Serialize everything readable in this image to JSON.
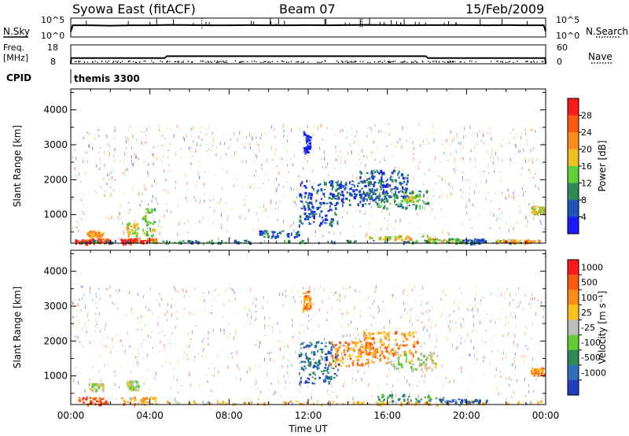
{
  "header": {
    "station": "Syowa East (fitACF)",
    "beam": "Beam 07",
    "date": "15/Feb/2009"
  },
  "chart_data": [
    {
      "type": "line",
      "panel": "noise",
      "left_label": "N.Sky",
      "right_label": "N.Search",
      "left_ticks": [
        "10^5",
        "10^0"
      ],
      "right_ticks": [
        "10^5",
        "10^0"
      ],
      "x_range_hours": [
        0,
        24
      ],
      "series": [
        {
          "name": "N.Sky",
          "style": "solid",
          "x": [
            0,
            0.1,
            1,
            2,
            3,
            4,
            5,
            6,
            7,
            8,
            9,
            10,
            11,
            12,
            13,
            14,
            15,
            16,
            17,
            18,
            19,
            20,
            21,
            22,
            23,
            23.9,
            24
          ],
          "level_fraction": [
            0.28,
            0.62,
            0.62,
            0.6,
            0.62,
            0.62,
            0.64,
            0.63,
            0.62,
            0.62,
            0.63,
            0.62,
            0.62,
            0.63,
            0.62,
            0.63,
            0.64,
            0.63,
            0.62,
            0.63,
            0.63,
            0.63,
            0.62,
            0.63,
            0.62,
            0.62,
            0.3
          ]
        }
      ]
    },
    {
      "type": "line",
      "panel": "frequency",
      "left_label_top": "Freq.",
      "left_label_unit": "[MHz]",
      "left_ticks": [
        "18",
        "8"
      ],
      "right_label": "Nave",
      "right_ticks": [
        "60",
        "0"
      ],
      "x_range_hours": [
        0,
        24
      ],
      "series": [
        {
          "name": "Freq.",
          "style": "solid",
          "x": [
            0,
            0.02,
            4.75,
            4.85,
            17.95,
            18.05,
            23.98,
            24
          ],
          "y": [
            8,
            11,
            11,
            12,
            12,
            11,
            11,
            8
          ]
        },
        {
          "name": "Nave",
          "style": "dotted",
          "y_value": 11
        }
      ]
    },
    {
      "type": "table",
      "panel": "cpid",
      "label": "CPID",
      "value": "themis 3300"
    },
    {
      "type": "heatmap",
      "panel": "power",
      "ylabel": "Slant Range [km]",
      "yticks": [
        1000,
        2000,
        3000,
        4000
      ],
      "ylim": [
        180,
        4600
      ],
      "xlabel": "",
      "xticks": [
        "00:00",
        "04:00",
        "08:00",
        "12:00",
        "16:00",
        "20:00",
        "00:00"
      ],
      "xlim_hours": [
        0,
        24
      ],
      "colorbar": {
        "label": "Power [dB]",
        "ticks": [
          "4",
          "8",
          "12",
          "16",
          "20",
          "24",
          "28"
        ],
        "colors": [
          "#1a1aff",
          "#1f56b5",
          "#2e8b57",
          "#5fd13d",
          "#f0c020",
          "#ff8c1a",
          "#ff5a14",
          "#ff1a1a"
        ]
      },
      "blobs": [
        {
          "t": [
            0.2,
            1.2
          ],
          "r": [
            200,
            320
          ],
          "level": 7
        },
        {
          "t": [
            1.2,
            2.0
          ],
          "r": [
            200,
            330
          ],
          "level": 6
        },
        {
          "t": [
            2.5,
            3.3
          ],
          "r": [
            200,
            330
          ],
          "level": 7
        },
        {
          "t": [
            3.3,
            4.3
          ],
          "r": [
            200,
            330
          ],
          "level": 6
        },
        {
          "t": [
            0.8,
            1.6
          ],
          "r": [
            380,
            560
          ],
          "level": 5
        },
        {
          "t": [
            2.8,
            3.4
          ],
          "r": [
            420,
            780
          ],
          "level": 4
        },
        {
          "t": [
            3.6,
            4.2
          ],
          "r": [
            400,
            1200
          ],
          "level": 3
        },
        {
          "t": [
            0.3,
            23.8
          ],
          "r": [
            200,
            280
          ],
          "level": 2
        },
        {
          "t": [
            9.5,
            11.5
          ],
          "r": [
            380,
            560
          ],
          "level": 1
        },
        {
          "t": [
            11.5,
            13.5
          ],
          "r": [
            700,
            2000
          ],
          "level": 1
        },
        {
          "t": [
            13.0,
            16.0
          ],
          "r": [
            1300,
            2000
          ],
          "level": 1
        },
        {
          "t": [
            14.5,
            17.0
          ],
          "r": [
            1500,
            2300
          ],
          "level": 1
        },
        {
          "t": [
            15.5,
            18.0
          ],
          "r": [
            1200,
            1700
          ],
          "level": 2
        },
        {
          "t": [
            16.8,
            17.6
          ],
          "r": [
            1400,
            1600
          ],
          "level": 3
        },
        {
          "t": [
            15.0,
            18.5
          ],
          "r": [
            300,
            420
          ],
          "level": 4
        },
        {
          "t": [
            18.0,
            19.8
          ],
          "r": [
            220,
            330
          ],
          "level": 3
        },
        {
          "t": [
            19.8,
            21.0
          ],
          "r": [
            200,
            320
          ],
          "level": 1
        },
        {
          "t": [
            21.5,
            23.8
          ],
          "r": [
            200,
            300
          ],
          "level": 5
        },
        {
          "t": [
            23.2,
            23.9
          ],
          "r": [
            1050,
            1250
          ],
          "level": 4
        },
        {
          "t": [
            11.7,
            12.1
          ],
          "r": [
            2800,
            3400
          ],
          "level": 0
        }
      ]
    },
    {
      "type": "heatmap",
      "panel": "velocity",
      "ylabel": "Slant Range [km]",
      "yticks": [
        1000,
        2000,
        3000,
        4000
      ],
      "ylim": [
        180,
        4600
      ],
      "xlabel": "Time UT",
      "xticks": [
        "00:00",
        "04:00",
        "08:00",
        "12:00",
        "16:00",
        "20:00",
        "00:00"
      ],
      "xlim_hours": [
        0,
        24
      ],
      "colorbar": {
        "label": "Velocity [m s⁻¹]",
        "ticks": [
          "1000",
          "500",
          "100",
          "25",
          "-25",
          "-100",
          "-500",
          "-1000"
        ],
        "colors": [
          "#1f3fbf",
          "#2f6fbf",
          "#2e8b57",
          "#66cc33",
          "#bdbdbd",
          "#ffc21a",
          "#ff8c1a",
          "#ff5a14",
          "#ff1a1a"
        ]
      },
      "blobs": [
        {
          "t": [
            0.2,
            1.8
          ],
          "r": [
            200,
            420
          ],
          "level": 7
        },
        {
          "t": [
            2.5,
            4.3
          ],
          "r": [
            200,
            420
          ],
          "level": 6
        },
        {
          "t": [
            0.8,
            1.6
          ],
          "r": [
            600,
            800
          ],
          "level": 4
        },
        {
          "t": [
            2.8,
            3.4
          ],
          "r": [
            600,
            900
          ],
          "level": 4
        },
        {
          "t": [
            4.3,
            23.8
          ],
          "r": [
            200,
            300
          ],
          "level": 5
        },
        {
          "t": [
            11.5,
            13.5
          ],
          "r": [
            800,
            2000
          ],
          "level": 1
        },
        {
          "t": [
            13.0,
            16.0
          ],
          "r": [
            1300,
            2000
          ],
          "level": 6
        },
        {
          "t": [
            14.5,
            17.5
          ],
          "r": [
            1600,
            2300
          ],
          "level": 6
        },
        {
          "t": [
            16.0,
            18.5
          ],
          "r": [
            1200,
            1700
          ],
          "level": 4
        },
        {
          "t": [
            15.5,
            19.0
          ],
          "r": [
            300,
            500
          ],
          "level": 2
        },
        {
          "t": [
            18.5,
            21.0
          ],
          "r": [
            250,
            350
          ],
          "level": 1
        },
        {
          "t": [
            23.2,
            23.9
          ],
          "r": [
            1050,
            1250
          ],
          "level": 6
        },
        {
          "t": [
            11.7,
            12.1
          ],
          "r": [
            2900,
            3500
          ],
          "level": 6
        }
      ]
    }
  ]
}
